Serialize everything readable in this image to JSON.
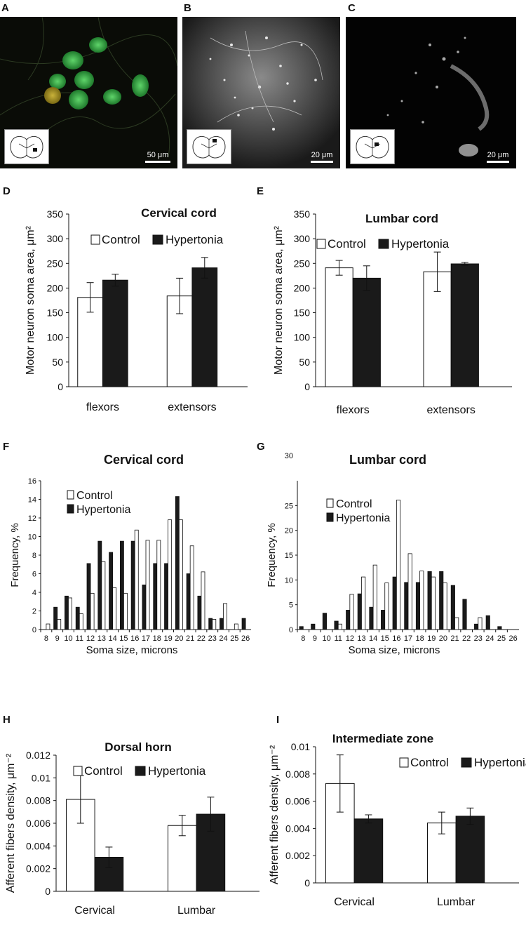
{
  "panels": {
    "A": {
      "letter": "A",
      "scale": "50 μm"
    },
    "B": {
      "letter": "B",
      "scale": "20 μm"
    },
    "C": {
      "letter": "C",
      "scale": "20 μm"
    },
    "D": "D",
    "E": "E",
    "F": "F",
    "G": "G",
    "H": "H",
    "I": "I"
  },
  "colors": {
    "control": "#ffffff",
    "hypertonia": "#1a1a1a",
    "stroke": "#111111"
  },
  "chart_data": [
    {
      "id": "D",
      "type": "bar",
      "title": "Cervical cord",
      "ylabel": "Motor neuron soma area, μm²",
      "xlabel": "",
      "categories": [
        "flexors",
        "extensors"
      ],
      "ylim": [
        0,
        350
      ],
      "yticks": [
        0,
        50,
        100,
        150,
        200,
        250,
        300,
        350
      ],
      "ytick_labels": [
        "0",
        "50",
        "100",
        "150",
        "200",
        "250",
        "300",
        "350"
      ],
      "legend": [
        "Control",
        "Hypertonia"
      ],
      "series": [
        {
          "name": "Control",
          "values": [
            181,
            184
          ],
          "errors": [
            30,
            36
          ]
        },
        {
          "name": "Hypertonia",
          "values": [
            216,
            241
          ],
          "errors": [
            12,
            21
          ]
        }
      ]
    },
    {
      "id": "E",
      "type": "bar",
      "title": "Lumbar cord",
      "ylabel": "Motor neuron soma area, μm²",
      "xlabel": "",
      "categories": [
        "flexors",
        "extensors"
      ],
      "ylim": [
        0,
        350
      ],
      "yticks": [
        0,
        50,
        100,
        150,
        200,
        250,
        300,
        350
      ],
      "ytick_labels": [
        "0",
        "50",
        "100",
        "150",
        "200",
        "250",
        "300",
        "350"
      ],
      "legend": [
        "Control",
        "Hypertonia"
      ],
      "series": [
        {
          "name": "Control",
          "values": [
            241,
            233
          ],
          "errors": [
            15,
            40
          ]
        },
        {
          "name": "Hypertonia",
          "values": [
            220,
            249
          ],
          "errors": [
            25,
            3
          ]
        }
      ]
    },
    {
      "id": "F",
      "type": "bar",
      "title": "Cervical cord",
      "ylabel": "Frequency, %",
      "xlabel": "Soma size, microns",
      "categories": [
        "8",
        "9",
        "10",
        "11",
        "12",
        "13",
        "14",
        "15",
        "16",
        "17",
        "18",
        "19",
        "20",
        "21",
        "22",
        "23",
        "24",
        "25",
        "26"
      ],
      "ylim": [
        0,
        16
      ],
      "yticks": [
        0,
        2,
        4,
        6,
        8,
        10,
        12,
        14,
        16
      ],
      "ytick_labels": [
        "0",
        "2",
        "4",
        "6",
        "8",
        "10",
        "12",
        "14",
        "16"
      ],
      "legend": [
        "Control",
        "Hypertonia"
      ],
      "series": [
        {
          "name": "Hypertonia",
          "values": [
            0,
            2.4,
            3.6,
            2.4,
            7.1,
            9.5,
            8.3,
            9.5,
            9.5,
            4.8,
            7.1,
            7.1,
            14.3,
            6.0,
            3.6,
            1.2,
            1.2,
            0,
            1.2
          ]
        },
        {
          "name": "Control",
          "values": [
            0.6,
            1.1,
            3.4,
            1.7,
            3.9,
            7.3,
            4.5,
            3.9,
            10.7,
            9.6,
            9.6,
            11.8,
            11.8,
            9.0,
            6.2,
            1.1,
            2.8,
            0.6,
            0
          ]
        }
      ]
    },
    {
      "id": "G",
      "type": "bar",
      "title": "Lumbar cord",
      "ylabel": "Frequency, %",
      "xlabel": "Soma size, microns",
      "extra_top_label": "30",
      "categories": [
        "8",
        "9",
        "10",
        "11",
        "12",
        "13",
        "14",
        "15",
        "16",
        "17",
        "18",
        "19",
        "20",
        "21",
        "22",
        "23",
        "24",
        "25",
        "26"
      ],
      "ylim": [
        0,
        30
      ],
      "yticks": [
        0,
        5,
        10,
        15,
        20,
        25
      ],
      "ytick_labels": [
        "0",
        "5",
        "10",
        "15",
        "20",
        "25"
      ],
      "legend": [
        "Control",
        "Hypertonia"
      ],
      "series": [
        {
          "name": "Hypertonia",
          "values": [
            0.6,
            1.1,
            3.3,
            1.7,
            3.9,
            7.2,
            4.5,
            3.9,
            10.6,
            9.5,
            9.5,
            11.7,
            11.7,
            8.9,
            6.1,
            1.1,
            2.8,
            0.6,
            0
          ]
        },
        {
          "name": "Control",
          "values": [
            0,
            0,
            0,
            1.1,
            7.1,
            10.6,
            13.0,
            9.4,
            26.1,
            15.3,
            11.8,
            10.6,
            9.4,
            2.4,
            0,
            2.4,
            0,
            0,
            0
          ]
        }
      ]
    },
    {
      "id": "H",
      "type": "bar",
      "title": "Dorsal horn",
      "ylabel": "Afferent fibers density, μm⁻²",
      "xlabel": "",
      "categories": [
        "Cervical",
        "Lumbar"
      ],
      "ylim": [
        0,
        0.012
      ],
      "yticks": [
        0,
        0.002,
        0.004,
        0.006,
        0.008,
        0.01,
        0.012
      ],
      "ytick_labels": [
        "0",
        "0.002",
        "0.004",
        "0.006",
        "0.008",
        "0.01",
        "0.012"
      ],
      "legend": [
        "Control",
        "Hypertonia"
      ],
      "series": [
        {
          "name": "Control",
          "values": [
            0.0081,
            0.0058
          ],
          "errors": [
            0.0021,
            0.0009
          ]
        },
        {
          "name": "Hypertonia",
          "values": [
            0.003,
            0.0068
          ],
          "errors": [
            0.0009,
            0.0015
          ]
        }
      ]
    },
    {
      "id": "I",
      "type": "bar",
      "title": "Intermediate zone",
      "ylabel": "Afferent fibers density, μm⁻²",
      "xlabel": "",
      "categories": [
        "Cervical",
        "Lumbar"
      ],
      "ylim": [
        0,
        0.01
      ],
      "yticks": [
        0,
        0.002,
        0.004,
        0.006,
        0.008,
        0.01
      ],
      "ytick_labels": [
        "0",
        "0.002",
        "0.004",
        "0.006",
        "0.008",
        "0.01"
      ],
      "legend": [
        "Control",
        "Hypertonia"
      ],
      "series": [
        {
          "name": "Control",
          "values": [
            0.0073,
            0.0044
          ],
          "errors": [
            0.0021,
            0.0008
          ]
        },
        {
          "name": "Hypertonia",
          "values": [
            0.0047,
            0.0049
          ],
          "errors": [
            0.0003,
            0.0006
          ]
        }
      ]
    }
  ]
}
